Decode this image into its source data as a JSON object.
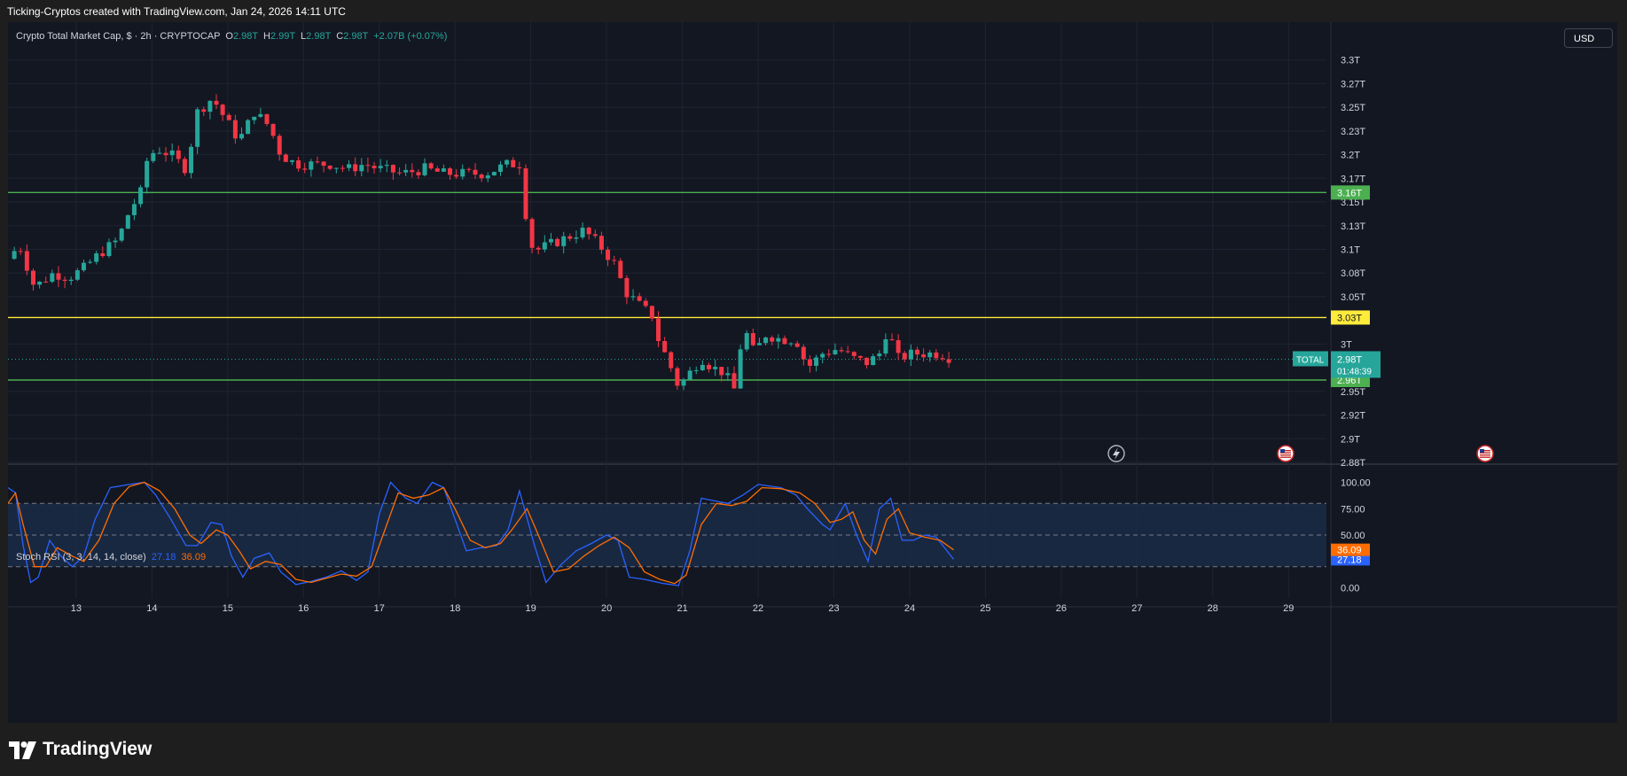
{
  "caption": "Ticking-Cryptos created with TradingView.com, Jan 24, 2026 14:11 UTC",
  "legend": {
    "symbol": "Crypto Total Market Cap, $ · 2h · CRYPTOCAP",
    "o_label": "O",
    "o_value": "2.98T",
    "h_label": "H",
    "h_value": "2.99T",
    "l_label": "L",
    "l_value": "2.98T",
    "c_label": "C",
    "c_value": "2.98T",
    "change": "+2.07B (+0.07%)"
  },
  "currency": "USD",
  "rsi_legend": {
    "title": "Stoch RSI (3, 3, 14, 14, close)",
    "k_value": "27.18",
    "d_value": "36.09"
  },
  "brand": "TradingView",
  "colors": {
    "background": "#131722",
    "up": "#26a69a",
    "down": "#f23645",
    "support_line": "#4caf50",
    "mid_line": "#ffeb3b",
    "stoch_k": "#2962ff",
    "stoch_d": "#ff6d00"
  },
  "chart_data": [
    {
      "type": "candlestick",
      "title": "Crypto Total Market Cap, $ · 2h · CRYPTOCAP",
      "ylim": [
        2.875,
        3.31
      ],
      "xlim": [
        12.1,
        29.5
      ],
      "y_ticks": [
        "3.3T",
        "3.27T",
        "3.25T",
        "3.23T",
        "3.2T",
        "3.17T",
        "3.15T",
        "3.13T",
        "3.1T",
        "3.08T",
        "3.05T",
        "3T",
        "2.95T",
        "2.92T",
        "2.9T",
        "2.88T"
      ],
      "y_tick_values": [
        3.3,
        3.275,
        3.25,
        3.225,
        3.2,
        3.175,
        3.15,
        3.125,
        3.1,
        3.075,
        3.05,
        3.0,
        2.95,
        2.925,
        2.9,
        2.875
      ],
      "x_ticks": [
        "13",
        "14",
        "15",
        "16",
        "17",
        "18",
        "19",
        "20",
        "21",
        "22",
        "23",
        "24",
        "25",
        "26",
        "27",
        "28",
        "29"
      ],
      "x_tick_values": [
        13,
        14,
        15,
        16,
        17,
        18,
        19,
        20,
        21,
        22,
        23,
        24,
        25,
        26,
        27,
        28,
        29
      ],
      "horizontal_levels": [
        {
          "label": "3.16T",
          "value": 3.16,
          "color": "#4caf50"
        },
        {
          "label": "3.03T",
          "value": 3.028,
          "color": "#ffeb3b"
        },
        {
          "label": "2.96T",
          "value": 2.962,
          "color": "#4caf50"
        }
      ],
      "last_price": {
        "symbol": "TOTAL",
        "label": "2.98T",
        "value": 2.984,
        "countdown": "01:48:39"
      },
      "close_path": [
        [
          12.1,
          3.09
        ],
        [
          12.25,
          3.105
        ],
        [
          12.45,
          3.06
        ],
        [
          12.7,
          3.075
        ],
        [
          12.9,
          3.07
        ],
        [
          13.1,
          3.08
        ],
        [
          13.3,
          3.095
        ],
        [
          13.55,
          3.11
        ],
        [
          13.7,
          3.14
        ],
        [
          13.85,
          3.16
        ],
        [
          13.95,
          3.2
        ],
        [
          14.1,
          3.205
        ],
        [
          14.25,
          3.2
        ],
        [
          14.45,
          3.185
        ],
        [
          14.6,
          3.245
        ],
        [
          14.8,
          3.26
        ],
        [
          14.95,
          3.24
        ],
        [
          15.15,
          3.215
        ],
        [
          15.35,
          3.245
        ],
        [
          15.55,
          3.23
        ],
        [
          15.7,
          3.2
        ],
        [
          15.9,
          3.19
        ],
        [
          16.1,
          3.19
        ],
        [
          16.35,
          3.19
        ],
        [
          16.6,
          3.185
        ],
        [
          16.8,
          3.19
        ],
        [
          17.0,
          3.185
        ],
        [
          17.3,
          3.18
        ],
        [
          17.6,
          3.185
        ],
        [
          17.85,
          3.18
        ],
        [
          18.1,
          3.18
        ],
        [
          18.4,
          3.18
        ],
        [
          18.7,
          3.19
        ],
        [
          18.85,
          3.19
        ],
        [
          18.93,
          3.14
        ],
        [
          18.98,
          3.105
        ],
        [
          19.1,
          3.1
        ],
        [
          19.4,
          3.11
        ],
        [
          19.7,
          3.12
        ],
        [
          19.9,
          3.105
        ],
        [
          20.1,
          3.085
        ],
        [
          20.25,
          3.055
        ],
        [
          20.45,
          3.04
        ],
        [
          20.6,
          3.03
        ],
        [
          20.7,
          3.0
        ],
        [
          20.8,
          2.985
        ],
        [
          20.95,
          2.955
        ],
        [
          21.1,
          2.97
        ],
        [
          21.25,
          2.985
        ],
        [
          21.4,
          2.975
        ],
        [
          21.55,
          2.97
        ],
        [
          21.7,
          2.95
        ],
        [
          21.8,
          3.02
        ],
        [
          21.95,
          2.99
        ],
        [
          22.1,
          3.01
        ],
        [
          22.3,
          3.005
        ],
        [
          22.5,
          3.005
        ],
        [
          22.65,
          2.975
        ],
        [
          22.85,
          2.99
        ],
        [
          23.05,
          2.995
        ],
        [
          23.25,
          2.985
        ],
        [
          23.45,
          2.98
        ],
        [
          23.6,
          2.99
        ],
        [
          23.7,
          3.015
        ],
        [
          23.85,
          2.985
        ],
        [
          24.05,
          2.99
        ],
        [
          24.25,
          2.99
        ],
        [
          24.4,
          2.99
        ],
        [
          24.58,
          2.984
        ]
      ]
    },
    {
      "type": "line",
      "title": "Stoch RSI (3, 3, 14, 14, close)",
      "ylim": [
        -8,
        108
      ],
      "y_ticks": [
        "100.00",
        "75.00",
        "50.00",
        "0.00"
      ],
      "y_tick_values": [
        100,
        75,
        50,
        0
      ],
      "bands": [
        80,
        50,
        20
      ],
      "series": [
        {
          "name": "K",
          "last_label": "27.18",
          "color": "#2962ff",
          "points": [
            [
              12.1,
              95
            ],
            [
              12.2,
              90
            ],
            [
              12.3,
              40
            ],
            [
              12.4,
              5
            ],
            [
              12.5,
              10
            ],
            [
              12.65,
              45
            ],
            [
              12.8,
              30
            ],
            [
              12.95,
              20
            ],
            [
              13.1,
              30
            ],
            [
              13.25,
              65
            ],
            [
              13.45,
              95
            ],
            [
              13.7,
              98
            ],
            [
              13.9,
              100
            ],
            [
              14.05,
              88
            ],
            [
              14.25,
              65
            ],
            [
              14.45,
              40
            ],
            [
              14.6,
              40
            ],
            [
              14.78,
              62
            ],
            [
              14.92,
              60
            ],
            [
              15.05,
              30
            ],
            [
              15.2,
              10
            ],
            [
              15.35,
              28
            ],
            [
              15.55,
              33
            ],
            [
              15.7,
              15
            ],
            [
              15.9,
              3
            ],
            [
              16.1,
              6
            ],
            [
              16.3,
              10
            ],
            [
              16.5,
              16
            ],
            [
              16.7,
              7
            ],
            [
              16.85,
              15
            ],
            [
              17.0,
              70
            ],
            [
              17.15,
              100
            ],
            [
              17.35,
              85
            ],
            [
              17.5,
              80
            ],
            [
              17.7,
              100
            ],
            [
              17.85,
              95
            ],
            [
              18.0,
              65
            ],
            [
              18.15,
              35
            ],
            [
              18.35,
              38
            ],
            [
              18.55,
              40
            ],
            [
              18.7,
              55
            ],
            [
              18.85,
              92
            ],
            [
              19.05,
              40
            ],
            [
              19.2,
              5
            ],
            [
              19.4,
              22
            ],
            [
              19.6,
              35
            ],
            [
              19.8,
              42
            ],
            [
              20.0,
              50
            ],
            [
              20.15,
              45
            ],
            [
              20.3,
              10
            ],
            [
              20.5,
              8
            ],
            [
              20.75,
              4
            ],
            [
              20.95,
              2
            ],
            [
              21.1,
              35
            ],
            [
              21.25,
              85
            ],
            [
              21.45,
              82
            ],
            [
              21.6,
              80
            ],
            [
              21.8,
              88
            ],
            [
              22.0,
              98
            ],
            [
              22.3,
              95
            ],
            [
              22.5,
              88
            ],
            [
              22.65,
              75
            ],
            [
              22.85,
              60
            ],
            [
              22.95,
              55
            ],
            [
              23.15,
              80
            ],
            [
              23.3,
              50
            ],
            [
              23.45,
              25
            ],
            [
              23.6,
              75
            ],
            [
              23.75,
              85
            ],
            [
              23.9,
              45
            ],
            [
              24.05,
              45
            ],
            [
              24.2,
              50
            ],
            [
              24.35,
              48
            ],
            [
              24.58,
              27
            ]
          ]
        },
        {
          "name": "D",
          "last_label": "36.09",
          "color": "#ff6d00",
          "points": [
            [
              12.1,
              80
            ],
            [
              12.2,
              90
            ],
            [
              12.3,
              60
            ],
            [
              12.45,
              20
            ],
            [
              12.6,
              20
            ],
            [
              12.75,
              38
            ],
            [
              12.95,
              30
            ],
            [
              13.1,
              25
            ],
            [
              13.3,
              45
            ],
            [
              13.5,
              80
            ],
            [
              13.7,
              96
            ],
            [
              13.9,
              100
            ],
            [
              14.1,
              92
            ],
            [
              14.3,
              75
            ],
            [
              14.5,
              50
            ],
            [
              14.65,
              42
            ],
            [
              14.85,
              55
            ],
            [
              15.0,
              50
            ],
            [
              15.15,
              35
            ],
            [
              15.3,
              18
            ],
            [
              15.5,
              25
            ],
            [
              15.7,
              22
            ],
            [
              15.9,
              8
            ],
            [
              16.1,
              5
            ],
            [
              16.3,
              9
            ],
            [
              16.5,
              13
            ],
            [
              16.7,
              11
            ],
            [
              16.9,
              20
            ],
            [
              17.05,
              50
            ],
            [
              17.25,
              90
            ],
            [
              17.45,
              85
            ],
            [
              17.65,
              88
            ],
            [
              17.85,
              95
            ],
            [
              18.0,
              75
            ],
            [
              18.2,
              45
            ],
            [
              18.4,
              38
            ],
            [
              18.6,
              42
            ],
            [
              18.75,
              55
            ],
            [
              18.95,
              75
            ],
            [
              19.1,
              50
            ],
            [
              19.3,
              15
            ],
            [
              19.5,
              18
            ],
            [
              19.7,
              30
            ],
            [
              19.9,
              40
            ],
            [
              20.1,
              48
            ],
            [
              20.3,
              38
            ],
            [
              20.5,
              15
            ],
            [
              20.7,
              8
            ],
            [
              20.9,
              4
            ],
            [
              21.05,
              12
            ],
            [
              21.25,
              60
            ],
            [
              21.45,
              80
            ],
            [
              21.65,
              78
            ],
            [
              21.85,
              82
            ],
            [
              22.05,
              95
            ],
            [
              22.3,
              94
            ],
            [
              22.55,
              90
            ],
            [
              22.75,
              80
            ],
            [
              22.95,
              62
            ],
            [
              23.1,
              65
            ],
            [
              23.25,
              72
            ],
            [
              23.4,
              45
            ],
            [
              23.55,
              32
            ],
            [
              23.7,
              65
            ],
            [
              23.85,
              75
            ],
            [
              24.0,
              52
            ],
            [
              24.2,
              48
            ],
            [
              24.4,
              45
            ],
            [
              24.58,
              36
            ]
          ]
        }
      ]
    }
  ]
}
